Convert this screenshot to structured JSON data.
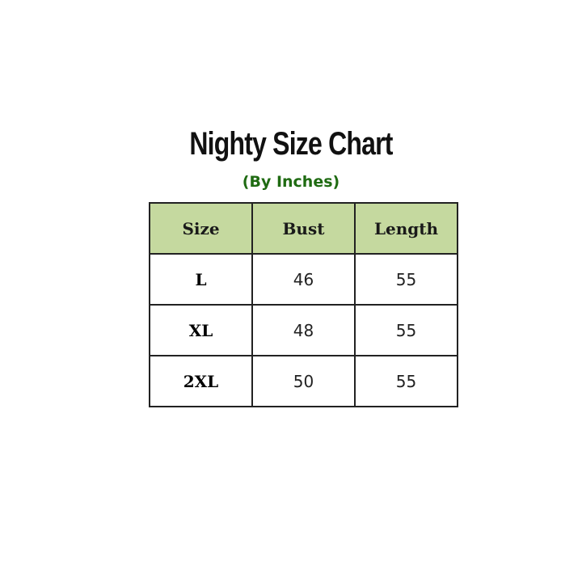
{
  "title": "Nighty Size Chart",
  "subtitle": "(By Inches)",
  "colors": {
    "header_bg": "#c5d99f",
    "subtitle": "#1f6b12"
  },
  "table": {
    "headers": [
      "Size",
      "Bust",
      "Length"
    ],
    "rows": [
      [
        "L",
        "46",
        "55"
      ],
      [
        "XL",
        "48",
        "55"
      ],
      [
        "2XL",
        "50",
        "55"
      ]
    ]
  }
}
